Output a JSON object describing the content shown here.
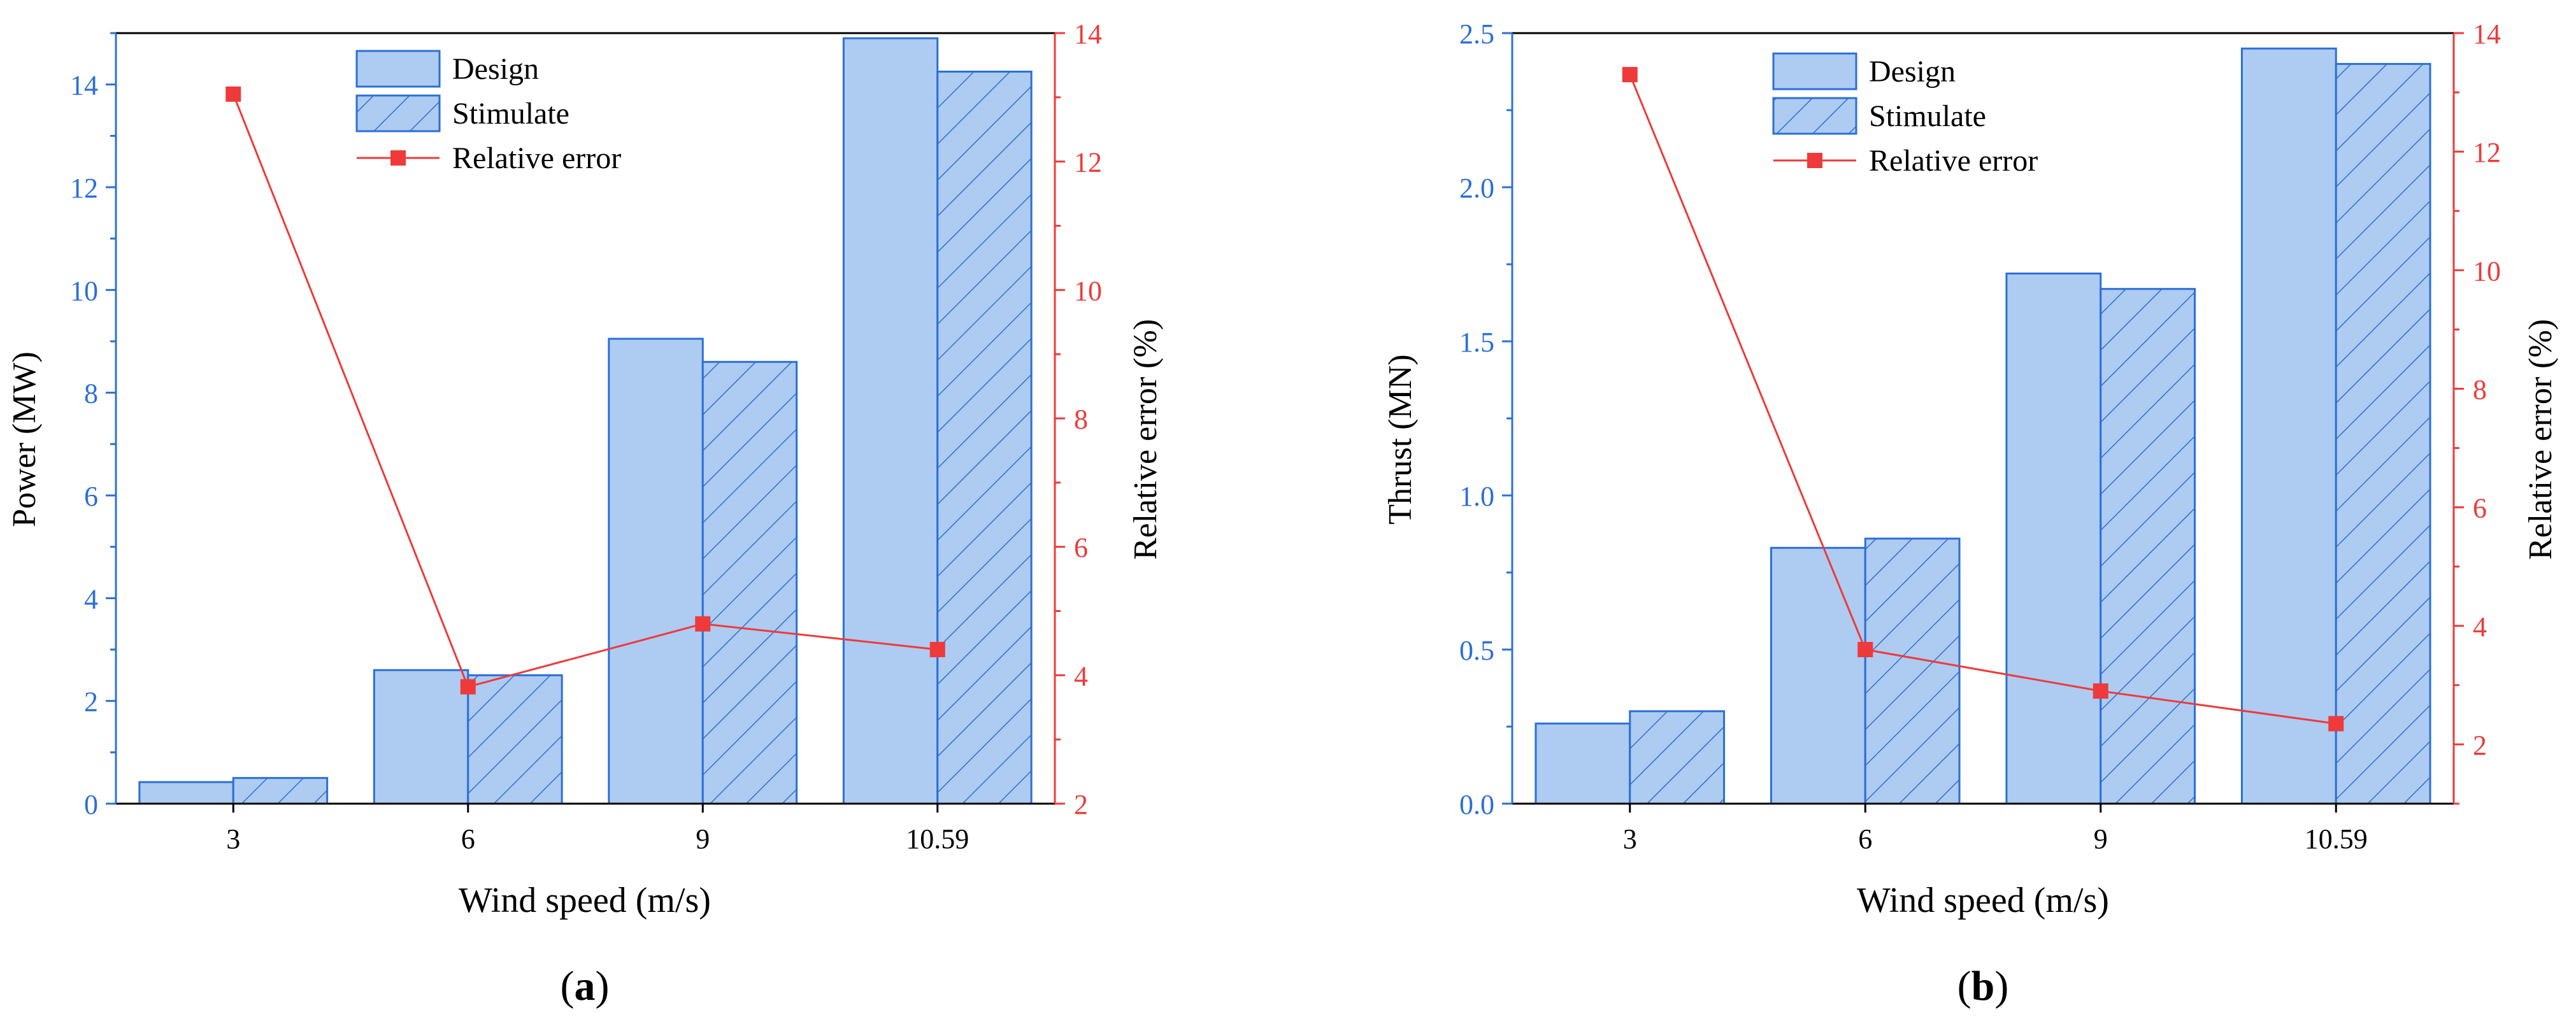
{
  "colors": {
    "bar_fill": "#aecbf2",
    "bar_edge": "#2b6fd6",
    "hatch": "#2b6fd6",
    "error": "#ee3a3a",
    "left_axis": "#2b6fd6",
    "right_axis": "#ee3a3a",
    "frame": "#000000"
  },
  "chart_data": [
    {
      "type": "bar",
      "panel_label": "a",
      "categories": [
        "3",
        "6",
        "9",
        "10.59"
      ],
      "xlabel": "Wind speed (m/s)",
      "ylabel": "Power (MW)",
      "ylabel_right": "Relative error (%)",
      "ylim": [
        0,
        15
      ],
      "yticks": [
        0,
        2,
        4,
        6,
        8,
        10,
        12,
        14
      ],
      "ylim_right": [
        2,
        14
      ],
      "yticks_right": [
        2,
        4,
        6,
        8,
        10,
        12,
        14
      ],
      "legend_position": "top-center",
      "legend": [
        "Design",
        "Stimulate",
        "Relative error"
      ],
      "series": [
        {
          "name": "Design",
          "kind": "bar",
          "axis": "left",
          "hatched": false,
          "values": [
            0.42,
            2.6,
            9.05,
            14.9
          ]
        },
        {
          "name": "Stimulate",
          "kind": "bar",
          "axis": "left",
          "hatched": true,
          "values": [
            0.5,
            2.5,
            8.6,
            14.25
          ]
        },
        {
          "name": "Relative error",
          "kind": "line",
          "axis": "right",
          "marker": "square",
          "values": [
            13.05,
            3.82,
            4.8,
            4.4
          ]
        }
      ]
    },
    {
      "type": "bar",
      "panel_label": "b",
      "categories": [
        "3",
        "6",
        "9",
        "10.59"
      ],
      "xlabel": "Wind speed (m/s)",
      "ylabel": "Thrust (MN)",
      "ylabel_right": "Relative error (%)",
      "ylim": [
        0,
        2.5
      ],
      "yticks": [
        "0.0",
        "0.5",
        "1.0",
        "1.5",
        "2.0",
        "2.5"
      ],
      "ylim_right": [
        1,
        14
      ],
      "yticks_right": [
        2,
        4,
        6,
        8,
        10,
        12,
        14
      ],
      "legend_position": "top-center",
      "legend": [
        "Design",
        "Stimulate",
        "Relative error"
      ],
      "series": [
        {
          "name": "Design",
          "kind": "bar",
          "axis": "left",
          "hatched": false,
          "values": [
            0.26,
            0.83,
            1.72,
            2.45
          ]
        },
        {
          "name": "Stimulate",
          "kind": "bar",
          "axis": "left",
          "hatched": true,
          "values": [
            0.3,
            0.86,
            1.67,
            2.4
          ]
        },
        {
          "name": "Relative error",
          "kind": "line",
          "axis": "right",
          "marker": "square",
          "values": [
            13.3,
            3.6,
            2.9,
            2.35
          ]
        }
      ]
    }
  ]
}
